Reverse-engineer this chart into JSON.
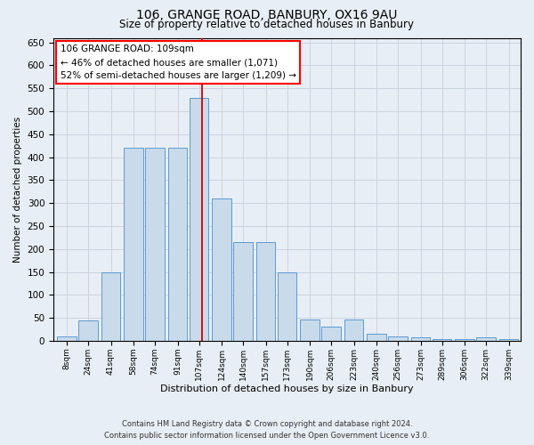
{
  "title": "106, GRANGE ROAD, BANBURY, OX16 9AU",
  "subtitle": "Size of property relative to detached houses in Banbury",
  "xlabel": "Distribution of detached houses by size in Banbury",
  "ylabel": "Number of detached properties",
  "footer_line1": "Contains HM Land Registry data © Crown copyright and database right 2024.",
  "footer_line2": "Contains public sector information licensed under the Open Government Licence v3.0.",
  "annotation_line1": "106 GRANGE ROAD: 109sqm",
  "annotation_line2": "← 46% of detached houses are smaller (1,071)",
  "annotation_line3": "52% of semi-detached houses are larger (1,209) →",
  "vline_x": 109,
  "categories": [
    "8sqm",
    "24sqm",
    "41sqm",
    "58sqm",
    "74sqm",
    "91sqm",
    "107sqm",
    "124sqm",
    "140sqm",
    "157sqm",
    "173sqm",
    "190sqm",
    "206sqm",
    "223sqm",
    "240sqm",
    "256sqm",
    "273sqm",
    "289sqm",
    "306sqm",
    "322sqm",
    "339sqm"
  ],
  "bar_centers": [
    8,
    24,
    41,
    58,
    74,
    91,
    107,
    124,
    140,
    157,
    173,
    190,
    206,
    223,
    240,
    256,
    273,
    289,
    306,
    322,
    339
  ],
  "bar_width": 14.5,
  "values": [
    10,
    45,
    150,
    420,
    420,
    420,
    530,
    310,
    215,
    215,
    150,
    47,
    30,
    47,
    15,
    10,
    8,
    3,
    3,
    7,
    3
  ],
  "bar_color": "#c9daea",
  "bar_edge_color": "#5b9bd5",
  "vline_color": "#cc0000",
  "grid_color": "#c5d0dc",
  "bg_color": "#e8eef5",
  "ylim": [
    0,
    660
  ],
  "yticks": [
    0,
    50,
    100,
    150,
    200,
    250,
    300,
    350,
    400,
    450,
    500,
    550,
    600,
    650
  ],
  "xlim_left": -2,
  "xlim_right": 348
}
